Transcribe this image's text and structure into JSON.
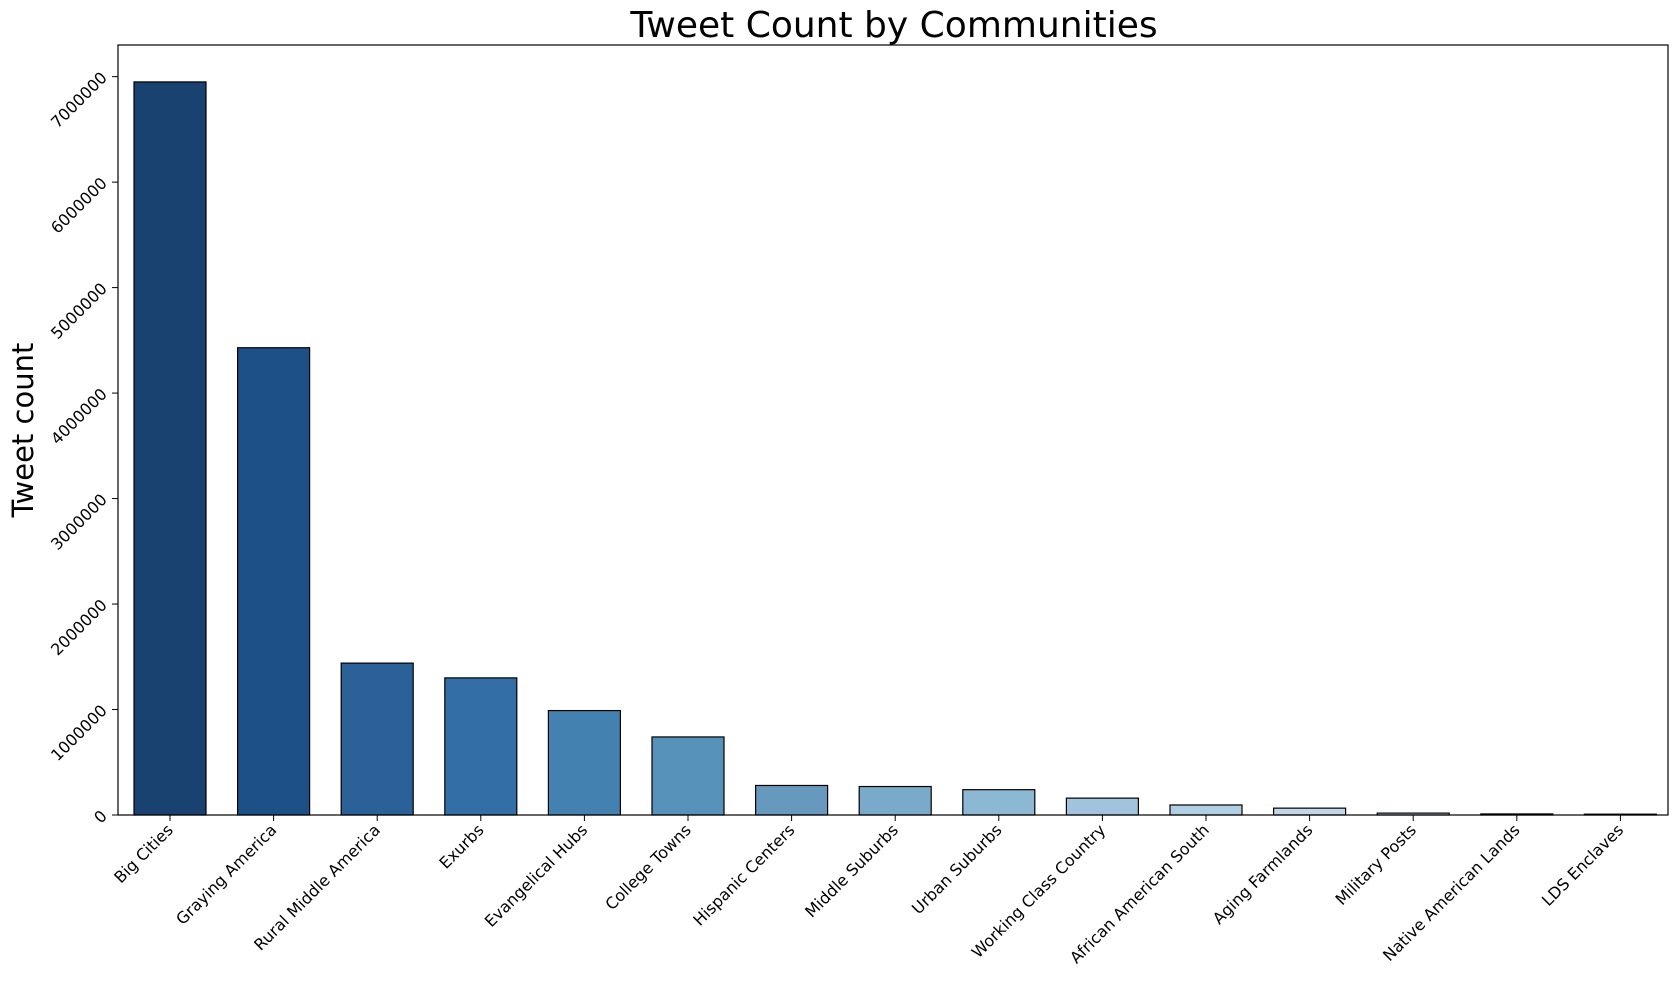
{
  "chart_data": {
    "type": "bar",
    "title": "Tweet Count by Communities",
    "xlabel": "",
    "ylabel": "Tweet count",
    "ylim": [
      0,
      7300000
    ],
    "yticks": [
      0,
      1000000,
      2000000,
      3000000,
      4000000,
      5000000,
      6000000,
      7000000
    ],
    "ytick_labels": [
      "0",
      "1000000",
      "2000000",
      "3000000",
      "4000000",
      "5000000",
      "6000000",
      "7000000"
    ],
    "grid": false,
    "categories": [
      "Big Cities",
      "Graying America",
      "Rural Middle America",
      "Exurbs",
      "Evangelical Hubs",
      "College Towns",
      "Hispanic Centers",
      "Middle Suburbs",
      "Urban Suburbs",
      "Working Class Country",
      "African American South",
      "Aging Farmlands",
      "Military Posts",
      "Native American Lands",
      "LDS Enclaves"
    ],
    "values": [
      6950000,
      4430000,
      1440000,
      1300000,
      990000,
      740000,
      280000,
      270000,
      240000,
      160000,
      95000,
      65000,
      18000,
      10000,
      8000
    ],
    "colors": [
      "#1a4270",
      "#1e5088",
      "#2a6198",
      "#336fa6",
      "#4382b0",
      "#5692ba",
      "#6799bf",
      "#7aaaca",
      "#8cb8d4",
      "#a1c4dc",
      "#b1cfe3",
      "#c2d8e8",
      "#cadeeb",
      "#d3e3ef",
      "#dae8f2"
    ]
  }
}
